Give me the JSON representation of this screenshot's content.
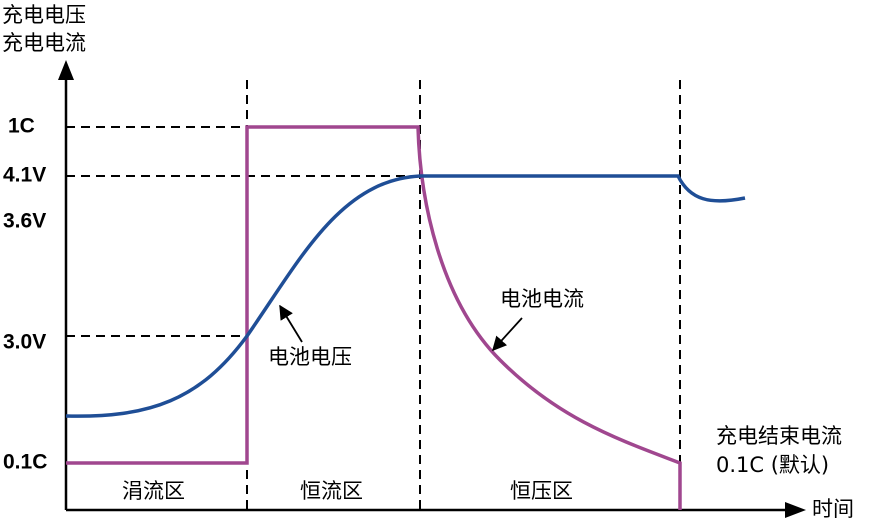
{
  "axis": {
    "y_label": [
      "充电电压",
      "充电电流"
    ],
    "x_label": "时间"
  },
  "levels": [
    "1C",
    "4.1V",
    "3.6V",
    "3.0V",
    "0.1C"
  ],
  "curves": [
    "电池电压",
    "电池电流"
  ],
  "regions": [
    "涓流区",
    "恒流区",
    "恒压区"
  ],
  "annotation": [
    "充电结束电流",
    "0.1C (默认)"
  ]
}
